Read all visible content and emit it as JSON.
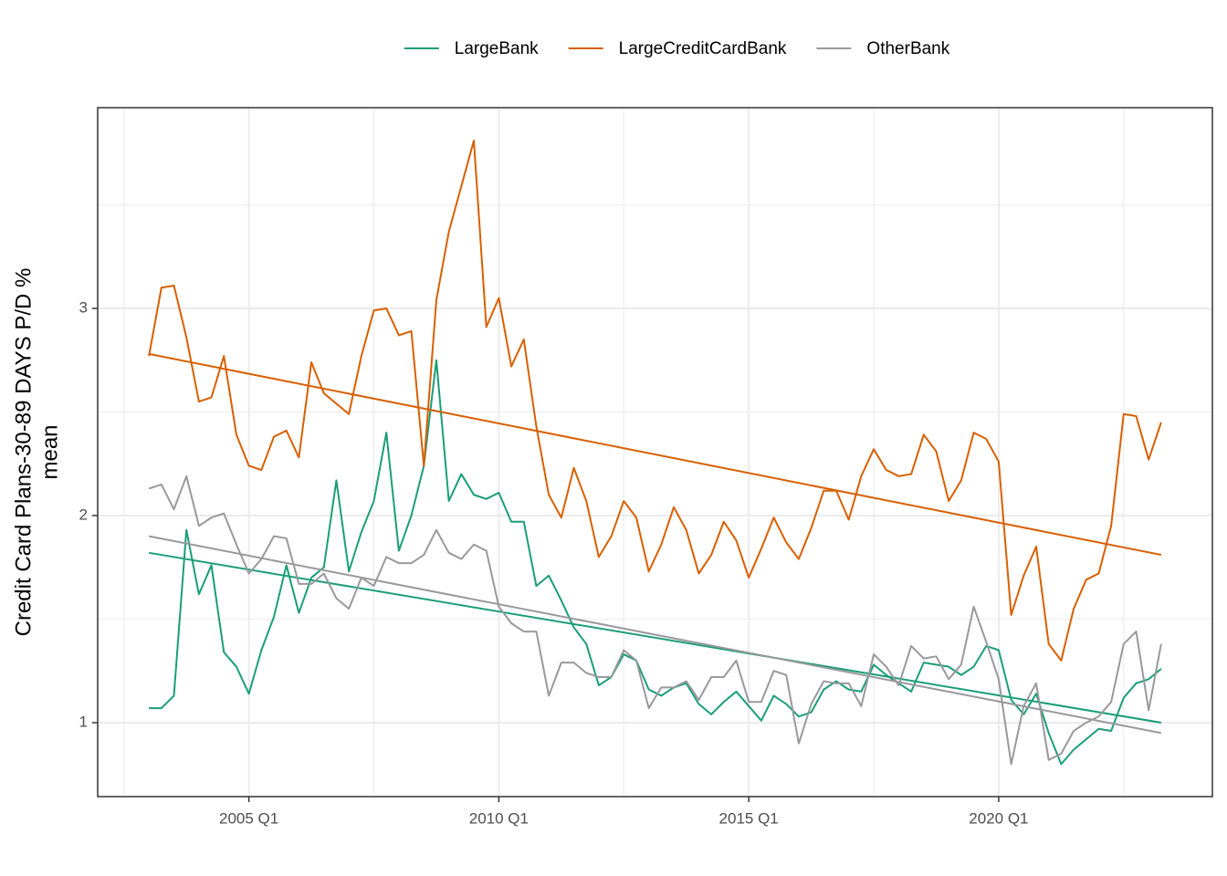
{
  "chart_data": {
    "type": "line",
    "ylabel": [
      "Credit Card Plans-30-89 DAYS P/D %",
      "mean"
    ],
    "x": [
      "2003 Q1",
      "2003 Q2",
      "2003 Q3",
      "2003 Q4",
      "2004 Q1",
      "2004 Q2",
      "2004 Q3",
      "2004 Q4",
      "2005 Q1",
      "2005 Q2",
      "2005 Q3",
      "2005 Q4",
      "2006 Q1",
      "2006 Q2",
      "2006 Q3",
      "2006 Q4",
      "2007 Q1",
      "2007 Q2",
      "2007 Q3",
      "2007 Q4",
      "2008 Q1",
      "2008 Q2",
      "2008 Q3",
      "2008 Q4",
      "2009 Q1",
      "2009 Q2",
      "2009 Q3",
      "2009 Q4",
      "2010 Q1",
      "2010 Q2",
      "2010 Q3",
      "2010 Q4",
      "2011 Q1",
      "2011 Q2",
      "2011 Q3",
      "2011 Q4",
      "2012 Q1",
      "2012 Q2",
      "2012 Q3",
      "2012 Q4",
      "2013 Q1",
      "2013 Q2",
      "2013 Q3",
      "2013 Q4",
      "2014 Q1",
      "2014 Q2",
      "2014 Q3",
      "2014 Q4",
      "2015 Q1",
      "2015 Q2",
      "2015 Q3",
      "2015 Q4",
      "2016 Q1",
      "2016 Q2",
      "2016 Q3",
      "2016 Q4",
      "2017 Q1",
      "2017 Q2",
      "2017 Q3",
      "2017 Q4",
      "2018 Q1",
      "2018 Q2",
      "2018 Q3",
      "2018 Q4",
      "2019 Q1",
      "2019 Q2",
      "2019 Q3",
      "2019 Q4",
      "2020 Q1",
      "2020 Q2",
      "2020 Q3",
      "2020 Q4",
      "2021 Q1",
      "2021 Q2",
      "2021 Q3",
      "2021 Q4",
      "2022 Q1",
      "2022 Q2",
      "2022 Q3",
      "2022 Q4",
      "2023 Q1",
      "2023 Q2"
    ],
    "xticks": [
      "2005 Q1",
      "2010 Q1",
      "2015 Q1",
      "2020 Q1"
    ],
    "ylim": [
      0.643,
      3.969
    ],
    "yticks": [
      1,
      2,
      3
    ],
    "grid": true,
    "legend": "top",
    "series": [
      {
        "name": "LargeBank",
        "color": "#1b9e77",
        "trend": [
          1.82,
          1.0
        ],
        "values": [
          1.07,
          1.07,
          1.13,
          1.93,
          1.62,
          1.76,
          1.34,
          1.27,
          1.14,
          1.35,
          1.51,
          1.76,
          1.53,
          1.7,
          1.75,
          2.17,
          1.73,
          1.92,
          2.07,
          2.4,
          1.83,
          2.0,
          2.24,
          2.75,
          2.07,
          2.2,
          2.1,
          2.08,
          2.11,
          1.97,
          1.97,
          1.66,
          1.71,
          1.59,
          1.46,
          1.38,
          1.18,
          1.22,
          1.33,
          1.3,
          1.16,
          1.13,
          1.17,
          1.19,
          1.09,
          1.04,
          1.1,
          1.15,
          1.08,
          1.01,
          1.13,
          1.09,
          1.03,
          1.05,
          1.16,
          1.2,
          1.16,
          1.15,
          1.28,
          1.23,
          1.19,
          1.15,
          1.29,
          1.28,
          1.27,
          1.23,
          1.27,
          1.37,
          1.35,
          1.11,
          1.04,
          1.14,
          0.95,
          0.8,
          0.87,
          0.92,
          0.97,
          0.96,
          1.12,
          1.19,
          1.21,
          1.26
        ]
      },
      {
        "name": "LargeCreditCardBank",
        "color": "#d95f02",
        "trend": [
          2.78,
          1.81
        ],
        "values": [
          2.77,
          3.1,
          3.11,
          2.86,
          2.55,
          2.57,
          2.77,
          2.39,
          2.24,
          2.22,
          2.38,
          2.41,
          2.28,
          2.74,
          2.59,
          2.54,
          2.49,
          2.77,
          2.99,
          3.0,
          2.87,
          2.89,
          2.24,
          3.04,
          3.37,
          3.59,
          3.81,
          2.91,
          3.05,
          2.72,
          2.85,
          2.43,
          2.1,
          1.99,
          2.23,
          2.07,
          1.8,
          1.9,
          2.07,
          1.99,
          1.73,
          1.86,
          2.04,
          1.93,
          1.72,
          1.81,
          1.97,
          1.88,
          1.7,
          1.84,
          1.99,
          1.87,
          1.79,
          1.94,
          2.12,
          2.12,
          1.98,
          2.19,
          2.32,
          2.22,
          2.19,
          2.2,
          2.39,
          2.31,
          2.07,
          2.17,
          2.4,
          2.37,
          2.26,
          1.52,
          1.71,
          1.85,
          1.38,
          1.3,
          1.55,
          1.69,
          1.72,
          1.95,
          2.49,
          2.48,
          2.27,
          2.45
        ]
      },
      {
        "name": "OtherBank",
        "color": "#999999",
        "trend": [
          1.9,
          0.95
        ],
        "values": [
          2.13,
          2.15,
          2.03,
          2.19,
          1.95,
          1.99,
          2.01,
          1.86,
          1.72,
          1.79,
          1.9,
          1.89,
          1.67,
          1.67,
          1.72,
          1.6,
          1.55,
          1.7,
          1.66,
          1.8,
          1.77,
          1.77,
          1.81,
          1.93,
          1.82,
          1.79,
          1.86,
          1.83,
          1.56,
          1.48,
          1.44,
          1.44,
          1.13,
          1.29,
          1.29,
          1.24,
          1.22,
          1.22,
          1.35,
          1.3,
          1.07,
          1.17,
          1.17,
          1.2,
          1.11,
          1.22,
          1.22,
          1.3,
          1.1,
          1.1,
          1.25,
          1.23,
          0.9,
          1.09,
          1.2,
          1.19,
          1.19,
          1.08,
          1.33,
          1.27,
          1.18,
          1.37,
          1.31,
          1.32,
          1.21,
          1.28,
          1.56,
          1.39,
          1.21,
          0.8,
          1.08,
          1.19,
          0.82,
          0.85,
          0.96,
          1.0,
          1.03,
          1.1,
          1.38,
          1.44,
          1.06,
          1.38
        ]
      }
    ]
  }
}
